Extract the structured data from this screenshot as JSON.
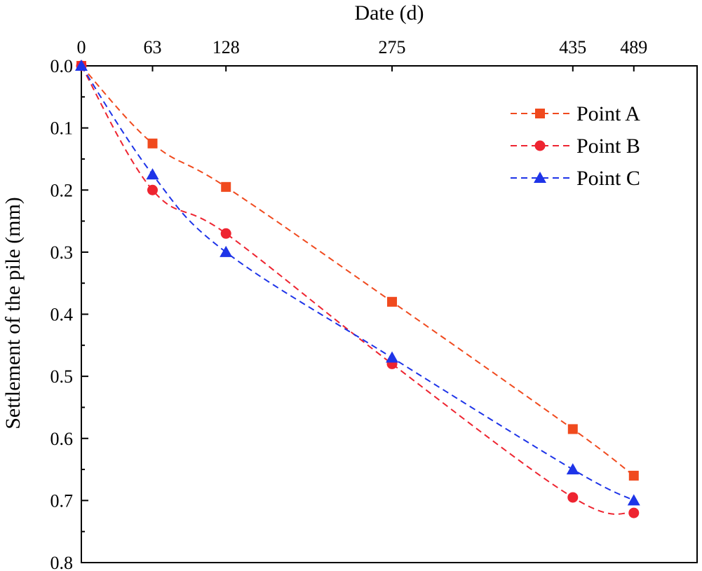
{
  "chart_data": {
    "type": "line",
    "title": "",
    "xlabel": "Date (d)",
    "ylabel": "Settlement of the pile  (mm)",
    "x": [
      0,
      63,
      128,
      275,
      435,
      489
    ],
    "x_ticks": [
      {
        "value": 0,
        "label": "0"
      },
      {
        "value": 63,
        "label": "63"
      },
      {
        "value": 128,
        "label": "128"
      },
      {
        "value": 275,
        "label": "275"
      },
      {
        "value": 435,
        "label": "435"
      },
      {
        "value": 489,
        "label": "489"
      }
    ],
    "xlim": [
      0,
      545
    ],
    "x_axis_position": "top",
    "ylim": [
      0,
      0.8
    ],
    "y_inverted": true,
    "y_ticks": [
      {
        "value": 0.0,
        "label": "0.0"
      },
      {
        "value": 0.1,
        "label": "0.1"
      },
      {
        "value": 0.2,
        "label": "0.2"
      },
      {
        "value": 0.3,
        "label": "0.3"
      },
      {
        "value": 0.4,
        "label": "0.4"
      },
      {
        "value": 0.5,
        "label": "0.5"
      },
      {
        "value": 0.6,
        "label": "0.6"
      },
      {
        "value": 0.7,
        "label": "0.7"
      },
      {
        "value": 0.8,
        "label": "0.8"
      }
    ],
    "grid": false,
    "legend_position": "top-right",
    "series": [
      {
        "name": "Point A",
        "marker": "square",
        "color": "#f04a1e",
        "line_style": "dashed",
        "values": [
          0,
          0.125,
          0.195,
          0.38,
          0.585,
          0.66
        ]
      },
      {
        "name": "Point B",
        "marker": "circle",
        "color": "#ee2430",
        "line_style": "dashed",
        "values": [
          0,
          0.2,
          0.27,
          0.48,
          0.695,
          0.72
        ]
      },
      {
        "name": "Point C",
        "marker": "triangle",
        "color": "#1e34e8",
        "line_style": "dashed",
        "values": [
          0,
          0.175,
          0.3,
          0.47,
          0.65,
          0.7
        ]
      }
    ]
  }
}
